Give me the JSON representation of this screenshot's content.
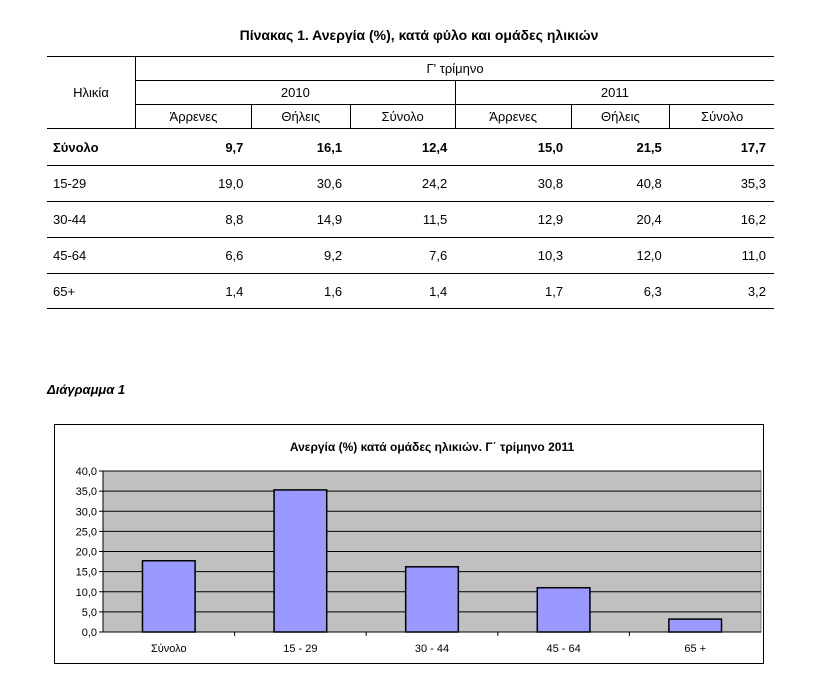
{
  "table": {
    "title": "Πίνακας 1. Ανεργία (%), κατά φύλο και ομάδες ηλικιών",
    "age_header": "Ηλικία",
    "period_header": "Γ' τρίμηνο",
    "years": [
      "2010",
      "2011"
    ],
    "subheaders": [
      "Άρρενες",
      "Θήλεις",
      "Σύνολο",
      "Άρρενες",
      "Θήλεις",
      "Σύνολο"
    ],
    "rows": [
      {
        "label": "Σύνολο",
        "values": [
          "9,7",
          "16,1",
          "12,4",
          "15,0",
          "21,5",
          "17,7"
        ]
      },
      {
        "label": "15-29",
        "values": [
          "19,0",
          "30,6",
          "24,2",
          "30,8",
          "40,8",
          "35,3"
        ]
      },
      {
        "label": "30-44",
        "values": [
          "8,8",
          "14,9",
          "11,5",
          "12,9",
          "20,4",
          "16,2"
        ]
      },
      {
        "label": "45-64",
        "values": [
          "6,6",
          "9,2",
          "7,6",
          "10,3",
          "12,0",
          "11,0"
        ]
      },
      {
        "label": "65+",
        "values": [
          "1,4",
          "1,6",
          "1,4",
          "1,7",
          "6,3",
          "3,2"
        ]
      }
    ]
  },
  "diagram_label": "Διάγραμμα 1",
  "chart_data": {
    "type": "bar",
    "title": "Ανεργία (%) κατά ομάδες ηλικιών. Γ΄ τρίμηνο 2011",
    "categories": [
      "Σύνολο",
      "15 - 29",
      "30 - 44",
      "45 - 64",
      "65 +"
    ],
    "values": [
      17.7,
      35.3,
      16.2,
      11.0,
      3.2
    ],
    "ylim": [
      0,
      40
    ],
    "yticks": [
      "0,0",
      "5,0",
      "10,0",
      "15,0",
      "20,0",
      "25,0",
      "30,0",
      "35,0",
      "40,0"
    ],
    "grid": true,
    "legend": "none",
    "colors": {
      "bar": "#9999ff",
      "plot_bg": "#c0c0c0",
      "gridline": "#000000"
    }
  }
}
